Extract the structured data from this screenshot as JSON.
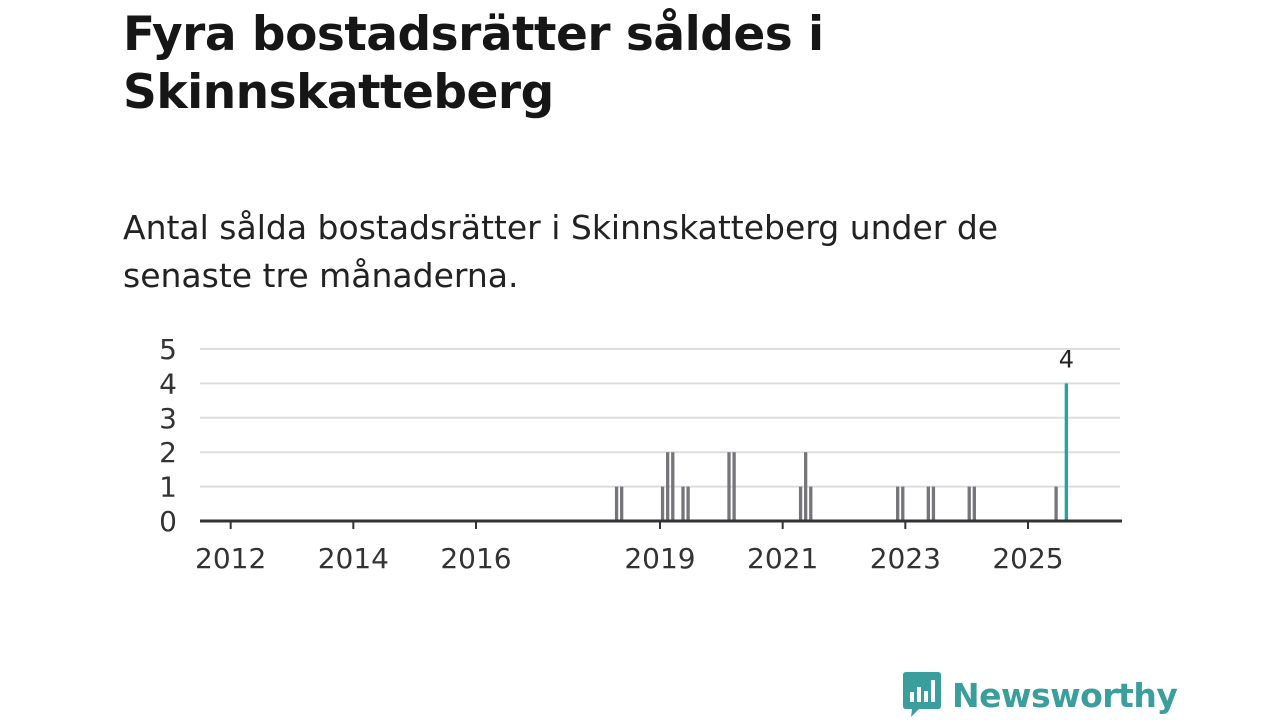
{
  "title": "Fyra bostadsrätter såldes i Skinnskatteberg",
  "subtitle": "Antal sålda bostadsrätter i Skinnskatteberg under de senaste tre månaderna.",
  "logo": {
    "text": "Newsworthy",
    "icon": "newsworthy-chat-bars-icon",
    "color": "#3a9e9c"
  },
  "colors": {
    "bar": "#76757a",
    "highlight": "#1ea79b",
    "grid": "#dddddd",
    "axis": "#333333"
  },
  "chart_data": {
    "type": "bar",
    "title": "",
    "xlabel": "",
    "ylabel": "",
    "ylim": [
      0,
      5
    ],
    "yticks": [
      0,
      1,
      2,
      3,
      4,
      5
    ],
    "xticks": [
      "2012",
      "2014",
      "2016",
      "2019",
      "2021",
      "2023",
      "2025"
    ],
    "xlim": [
      "2011-07",
      "2026-07"
    ],
    "grid": true,
    "points": [
      {
        "x": "2018-04",
        "value": 1
      },
      {
        "x": "2018-05",
        "value": 1
      },
      {
        "x": "2019-01",
        "value": 1
      },
      {
        "x": "2019-02",
        "value": 2
      },
      {
        "x": "2019-03",
        "value": 2
      },
      {
        "x": "2019-05",
        "value": 1
      },
      {
        "x": "2019-06",
        "value": 1
      },
      {
        "x": "2020-02",
        "value": 2
      },
      {
        "x": "2020-03",
        "value": 2
      },
      {
        "x": "2021-04",
        "value": 1
      },
      {
        "x": "2021-05",
        "value": 2
      },
      {
        "x": "2021-06",
        "value": 1
      },
      {
        "x": "2022-11",
        "value": 1
      },
      {
        "x": "2022-12",
        "value": 1
      },
      {
        "x": "2023-05",
        "value": 1
      },
      {
        "x": "2023-06",
        "value": 1
      },
      {
        "x": "2024-01",
        "value": 1
      },
      {
        "x": "2024-02",
        "value": 1
      },
      {
        "x": "2025-06",
        "value": 1
      },
      {
        "x": "2025-08",
        "value": 4,
        "highlight": true,
        "label": "4"
      }
    ]
  }
}
